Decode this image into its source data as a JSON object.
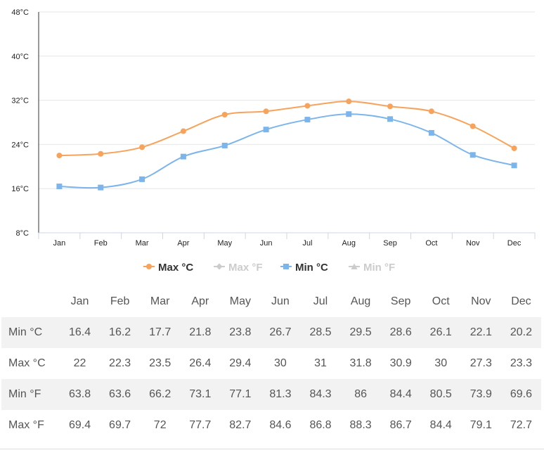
{
  "chart_data": {
    "type": "line",
    "categories": [
      "Jan",
      "Feb",
      "Mar",
      "Apr",
      "May",
      "Jun",
      "Jul",
      "Aug",
      "Sep",
      "Oct",
      "Nov",
      "Dec"
    ],
    "ylim": [
      8,
      48
    ],
    "y_ticks": [
      8,
      16,
      24,
      32,
      40,
      48
    ],
    "y_tick_labels": [
      "8°C",
      "16°C",
      "24°C",
      "32°C",
      "40°C",
      "48°C"
    ],
    "grid": true,
    "legend_position": "bottom",
    "series": [
      {
        "name": "Max °C",
        "color": "#f7a35c",
        "marker": "circle",
        "visible": true,
        "values": [
          22,
          22.3,
          23.5,
          26.4,
          29.4,
          30,
          31,
          31.8,
          30.9,
          30,
          27.3,
          23.3
        ]
      },
      {
        "name": "Max °F",
        "color": "#cccccc",
        "marker": "diamond",
        "visible": false,
        "values": [
          69.4,
          69.7,
          72,
          77.7,
          82.7,
          84.6,
          86.8,
          88.3,
          86.7,
          84.4,
          79.1,
          72.7
        ]
      },
      {
        "name": "Min °C",
        "color": "#7cb5ec",
        "marker": "square",
        "visible": true,
        "values": [
          16.4,
          16.2,
          17.7,
          21.8,
          23.8,
          26.7,
          28.5,
          29.5,
          28.6,
          26.1,
          22.1,
          20.2
        ]
      },
      {
        "name": "Min °F",
        "color": "#cccccc",
        "marker": "triangle",
        "visible": false,
        "values": [
          63.8,
          63.6,
          66.2,
          73.1,
          77.1,
          81.3,
          84.3,
          86,
          84.4,
          80.5,
          73.9,
          69.6
        ]
      }
    ]
  },
  "table": {
    "months": [
      "Jan",
      "Feb",
      "Mar",
      "Apr",
      "May",
      "Jun",
      "Jul",
      "Aug",
      "Sep",
      "Oct",
      "Nov",
      "Dec"
    ],
    "rows": [
      {
        "label": "Min °C",
        "values": [
          "16.4",
          "16.2",
          "17.7",
          "21.8",
          "23.8",
          "26.7",
          "28.5",
          "29.5",
          "28.6",
          "26.1",
          "22.1",
          "20.2"
        ]
      },
      {
        "label": "Max °C",
        "values": [
          "22",
          "22.3",
          "23.5",
          "26.4",
          "29.4",
          "30",
          "31",
          "31.8",
          "30.9",
          "30",
          "27.3",
          "23.3"
        ]
      },
      {
        "label": "Min °F",
        "values": [
          "63.8",
          "63.6",
          "66.2",
          "73.1",
          "77.1",
          "81.3",
          "84.3",
          "86",
          "84.4",
          "80.5",
          "73.9",
          "69.6"
        ]
      },
      {
        "label": "Max °F",
        "values": [
          "69.4",
          "69.7",
          "72",
          "77.7",
          "82.7",
          "84.6",
          "86.8",
          "88.3",
          "86.7",
          "84.4",
          "79.1",
          "72.7"
        ]
      }
    ]
  }
}
